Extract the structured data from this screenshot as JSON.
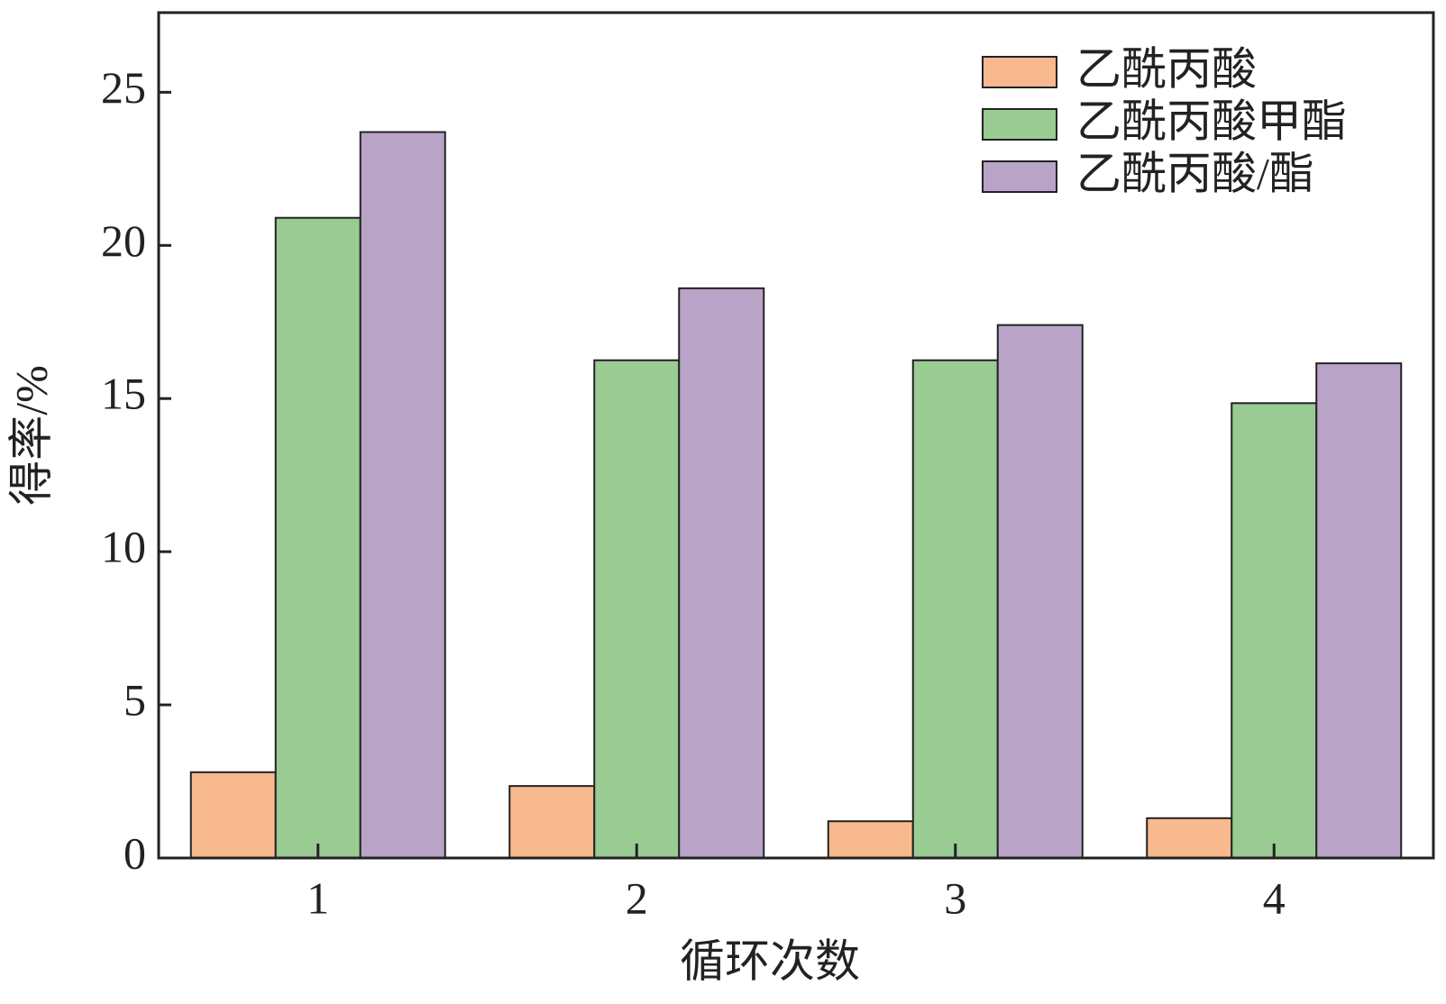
{
  "chart_data": {
    "type": "bar",
    "x_label": "循环次数",
    "y_label": "得率/%",
    "categories": [
      "1",
      "2",
      "3",
      "4"
    ],
    "series": [
      {
        "name": "乙酰丙酸",
        "color": "#f8b98e",
        "values": [
          2.8,
          2.35,
          1.2,
          1.3
        ]
      },
      {
        "name": "乙酰丙酸甲酯",
        "color": "#99cb92",
        "values": [
          20.9,
          16.25,
          16.25,
          14.85
        ]
      },
      {
        "name": "乙酰丙酸/酯",
        "color": "#b9a4c8",
        "values": [
          23.7,
          18.6,
          17.4,
          16.15
        ]
      }
    ],
    "ylim": [
      0,
      27.6
    ],
    "yticks": [
      0,
      5,
      10,
      15,
      20,
      25
    ],
    "legend": "upper right"
  }
}
